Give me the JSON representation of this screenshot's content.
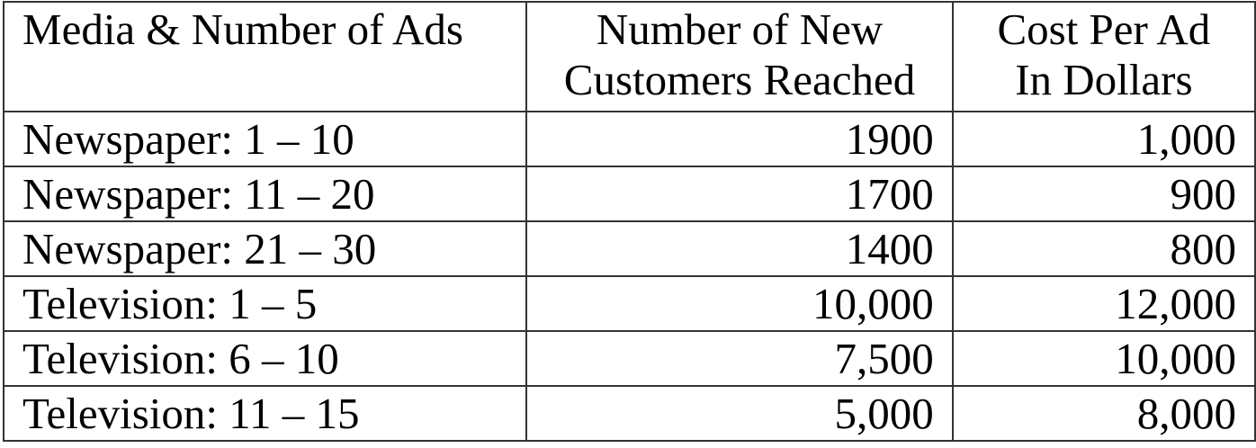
{
  "table": {
    "headers": [
      "Media & Number of Ads",
      "Number of New Customers Reached",
      "Cost Per Ad In Dollars"
    ],
    "header_lines": [
      [
        "Media & Number of Ads",
        ""
      ],
      [
        "Number of New",
        "Customers Reached"
      ],
      [
        "Cost Per Ad",
        "In Dollars"
      ]
    ],
    "rows": [
      [
        "Newspaper: 1 – 10",
        "1900",
        "1,000"
      ],
      [
        "Newspaper: 11 – 20",
        "1700",
        "900"
      ],
      [
        "Newspaper: 21 – 30",
        "1400",
        "800"
      ],
      [
        "Television: 1 – 5",
        "10,000",
        "12,000"
      ],
      [
        "Television: 6 – 10",
        "7,500",
        "10,000"
      ],
      [
        "Television: 11 – 15",
        "5,000",
        "8,000"
      ]
    ]
  }
}
